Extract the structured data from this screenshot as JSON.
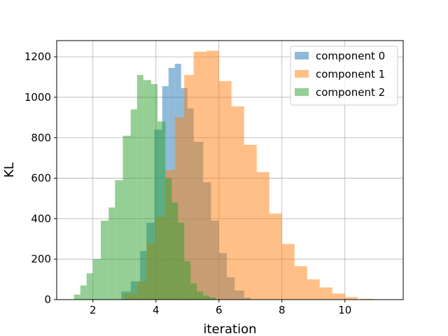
{
  "chart_data": {
    "type": "histogram",
    "xlabel": "iteration",
    "ylabel": "KL",
    "xlim": [
      0.85,
      11.85
    ],
    "ylim": [
      0,
      1280
    ],
    "xticks": [
      2,
      4,
      6,
      8,
      10
    ],
    "yticks": [
      0,
      200,
      400,
      600,
      800,
      1000,
      1200
    ],
    "grid": true,
    "legend": "top-right",
    "alpha": 0.5,
    "series": [
      {
        "name": "component 0",
        "color": "#1f77b4",
        "bins": [
          {
            "x0": 2.9,
            "x1": 3.2,
            "value": 40
          },
          {
            "x0": 3.2,
            "x1": 3.5,
            "value": 90
          },
          {
            "x0": 3.5,
            "x1": 3.7,
            "value": 240
          },
          {
            "x0": 3.7,
            "x1": 3.95,
            "value": 380
          },
          {
            "x0": 3.95,
            "x1": 4.2,
            "value": 840
          },
          {
            "x0": 4.2,
            "x1": 4.4,
            "value": 1055
          },
          {
            "x0": 4.4,
            "x1": 4.6,
            "value": 1145
          },
          {
            "x0": 4.6,
            "x1": 4.8,
            "value": 1165
          },
          {
            "x0": 4.8,
            "x1": 5.0,
            "value": 1045
          },
          {
            "x0": 5.0,
            "x1": 5.2,
            "value": 945
          },
          {
            "x0": 5.2,
            "x1": 5.5,
            "value": 780
          },
          {
            "x0": 5.5,
            "x1": 5.75,
            "value": 580
          },
          {
            "x0": 5.75,
            "x1": 6.0,
            "value": 390
          },
          {
            "x0": 6.0,
            "x1": 6.25,
            "value": 230
          },
          {
            "x0": 6.25,
            "x1": 6.5,
            "value": 110
          },
          {
            "x0": 6.5,
            "x1": 6.8,
            "value": 45
          },
          {
            "x0": 6.8,
            "x1": 7.0,
            "value": 10
          }
        ]
      },
      {
        "name": "component 1",
        "color": "#ff7f0e",
        "bins": [
          {
            "x0": 3.0,
            "x1": 3.4,
            "value": 30
          },
          {
            "x0": 3.4,
            "x1": 3.7,
            "value": 90
          },
          {
            "x0": 3.7,
            "x1": 4.0,
            "value": 280
          },
          {
            "x0": 4.0,
            "x1": 4.3,
            "value": 410
          },
          {
            "x0": 4.3,
            "x1": 4.6,
            "value": 640
          },
          {
            "x0": 4.6,
            "x1": 4.9,
            "value": 900
          },
          {
            "x0": 4.9,
            "x1": 5.2,
            "value": 1110
          },
          {
            "x0": 5.2,
            "x1": 5.6,
            "value": 1225
          },
          {
            "x0": 5.6,
            "x1": 6.0,
            "value": 1230
          },
          {
            "x0": 6.0,
            "x1": 6.4,
            "value": 1080
          },
          {
            "x0": 6.4,
            "x1": 6.8,
            "value": 955
          },
          {
            "x0": 6.8,
            "x1": 7.2,
            "value": 765
          },
          {
            "x0": 7.2,
            "x1": 7.6,
            "value": 630
          },
          {
            "x0": 7.6,
            "x1": 8.0,
            "value": 425
          },
          {
            "x0": 8.0,
            "x1": 8.4,
            "value": 275
          },
          {
            "x0": 8.4,
            "x1": 8.8,
            "value": 165
          },
          {
            "x0": 8.8,
            "x1": 9.2,
            "value": 100
          },
          {
            "x0": 9.2,
            "x1": 9.6,
            "value": 60
          },
          {
            "x0": 9.6,
            "x1": 10.0,
            "value": 30
          },
          {
            "x0": 10.0,
            "x1": 10.4,
            "value": 12
          },
          {
            "x0": 10.5,
            "x1": 10.9,
            "value": 4
          }
        ]
      },
      {
        "name": "component 2",
        "color": "#2ca02c",
        "bins": [
          {
            "x0": 1.4,
            "x1": 1.6,
            "value": 25
          },
          {
            "x0": 1.6,
            "x1": 1.8,
            "value": 70
          },
          {
            "x0": 1.8,
            "x1": 2.0,
            "value": 130
          },
          {
            "x0": 2.0,
            "x1": 2.25,
            "value": 200
          },
          {
            "x0": 2.25,
            "x1": 2.5,
            "value": 390
          },
          {
            "x0": 2.5,
            "x1": 2.7,
            "value": 455
          },
          {
            "x0": 2.7,
            "x1": 2.95,
            "value": 590
          },
          {
            "x0": 2.95,
            "x1": 3.2,
            "value": 810
          },
          {
            "x0": 3.2,
            "x1": 3.4,
            "value": 940
          },
          {
            "x0": 3.4,
            "x1": 3.6,
            "value": 1110
          },
          {
            "x0": 3.6,
            "x1": 3.85,
            "value": 1085
          },
          {
            "x0": 3.85,
            "x1": 4.05,
            "value": 1065
          },
          {
            "x0": 4.05,
            "x1": 4.3,
            "value": 880
          },
          {
            "x0": 4.3,
            "x1": 4.5,
            "value": 600
          },
          {
            "x0": 4.5,
            "x1": 4.7,
            "value": 480
          },
          {
            "x0": 4.7,
            "x1": 4.9,
            "value": 380
          },
          {
            "x0": 4.9,
            "x1": 5.1,
            "value": 190
          },
          {
            "x0": 5.1,
            "x1": 5.3,
            "value": 80
          },
          {
            "x0": 5.3,
            "x1": 5.5,
            "value": 40
          },
          {
            "x0": 5.5,
            "x1": 5.7,
            "value": 20
          },
          {
            "x0": 5.7,
            "x1": 5.9,
            "value": 10
          }
        ]
      }
    ]
  }
}
